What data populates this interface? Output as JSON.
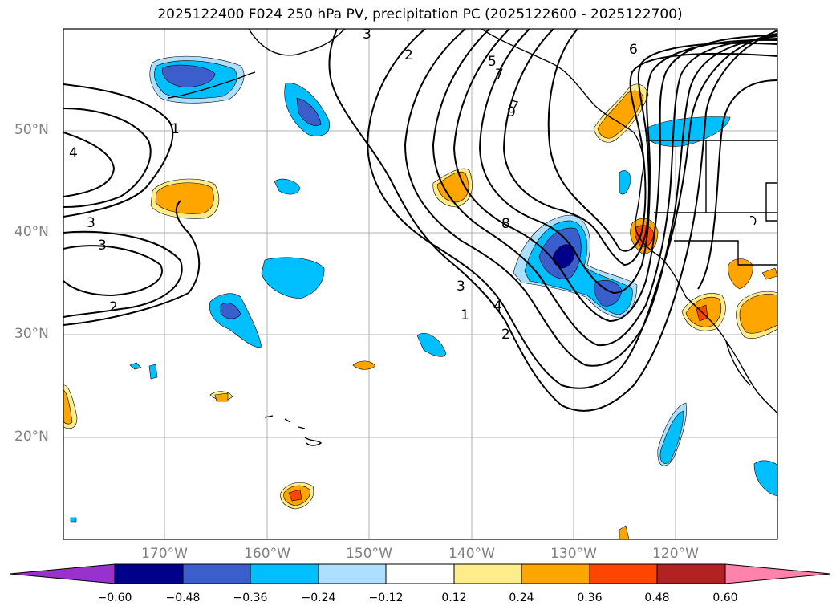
{
  "title": "2025122400 F024 250 hPa PV, precipitation PC (2025122600 - 2025122700)",
  "lat_labels": [
    "50°N",
    "40°N",
    "30°N",
    "20°N"
  ],
  "lon_labels": [
    "170°W",
    "160°W",
    "150°W",
    "140°W",
    "130°W",
    "120°W"
  ],
  "colorbar": {
    "ticks": [
      "−0.60",
      "−0.48",
      "−0.36",
      "−0.24",
      "−0.12",
      "0.12",
      "0.24",
      "0.36",
      "0.48",
      "0.60"
    ],
    "colors": [
      "#9932CC",
      "#00008B",
      "#3A5FCD",
      "#00BFFF",
      "#ADDFFF",
      "#FFFFFF",
      "#FFEC8B",
      "#FFA500",
      "#FF4500",
      "#B22222",
      "#FF82AB"
    ]
  },
  "pv_contour_labels": [
    "1",
    "2",
    "3",
    "4",
    "5",
    "6",
    "7",
    "8",
    "9"
  ],
  "chart_data": {
    "type": "map",
    "projection": "lat-lon",
    "lon_range": [
      -180,
      -110
    ],
    "lat_range": [
      10,
      60
    ],
    "variables": [
      "250 hPa PV (contours)",
      "precipitation PC (shaded)"
    ],
    "init_time": "2025122400",
    "forecast_hour": "F024",
    "valid_window": "2025122600 - 2025122700"
  }
}
